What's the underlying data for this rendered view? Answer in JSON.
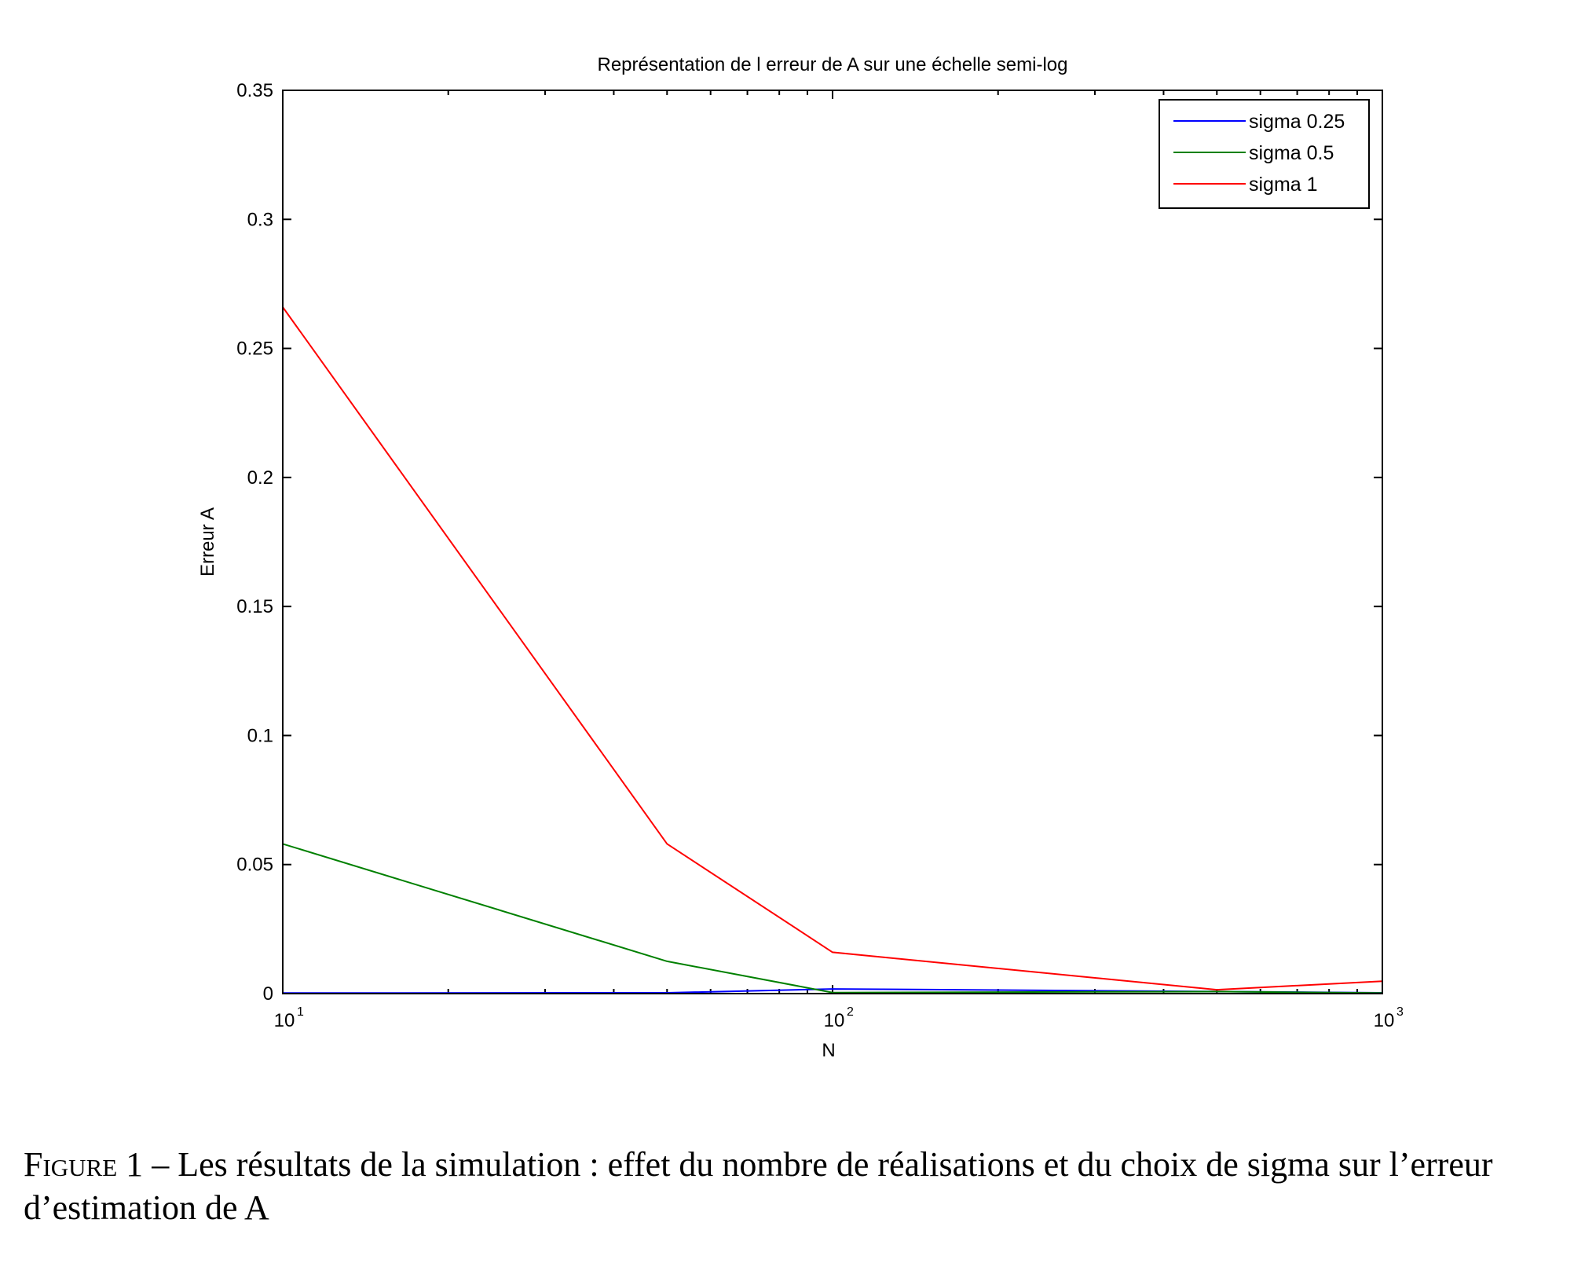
{
  "chart_data": {
    "type": "line",
    "title": "Représentation de l erreur de A sur une échelle semi-log",
    "xlabel": "N",
    "ylabel": "Erreur A",
    "xscale": "log",
    "xlim": [
      10,
      1000
    ],
    "ylim": [
      0,
      0.35
    ],
    "xticks": [
      {
        "value": 10,
        "base": "10",
        "exp": "1"
      },
      {
        "value": 100,
        "base": "10",
        "exp": "2"
      },
      {
        "value": 1000,
        "base": "10",
        "exp": "3"
      }
    ],
    "yticks": [
      {
        "value": 0,
        "label": "0"
      },
      {
        "value": 0.05,
        "label": "0.05"
      },
      {
        "value": 0.1,
        "label": "0.1"
      },
      {
        "value": 0.15,
        "label": "0.15"
      },
      {
        "value": 0.2,
        "label": "0.2"
      },
      {
        "value": 0.25,
        "label": "0.25"
      },
      {
        "value": 0.3,
        "label": "0.3"
      },
      {
        "value": 0.35,
        "label": "0.35"
      }
    ],
    "grid": false,
    "legend_position": "top-right",
    "series": [
      {
        "name": "sigma 0.25",
        "color": "#0000ff",
        "x": [
          10,
          50,
          100,
          500,
          1000
        ],
        "y": [
          0.0002,
          0.0003,
          0.0018,
          0.0008,
          0.0003
        ]
      },
      {
        "name": "sigma 0.5",
        "color": "#008000",
        "x": [
          10,
          50,
          100,
          500,
          1000
        ],
        "y": [
          0.058,
          0.0125,
          0.0004,
          0.0008,
          0.0002
        ]
      },
      {
        "name": "sigma 1",
        "color": "#ff0000",
        "x": [
          10,
          50,
          100,
          500,
          1000
        ],
        "y": [
          0.266,
          0.058,
          0.016,
          0.0015,
          0.0048
        ]
      }
    ]
  },
  "caption": {
    "label": "Figure 1",
    "text": " – Les résultats de la simulation : effet du nombre de réalisations et du choix de sigma sur l’erreur d’estimation de A"
  }
}
